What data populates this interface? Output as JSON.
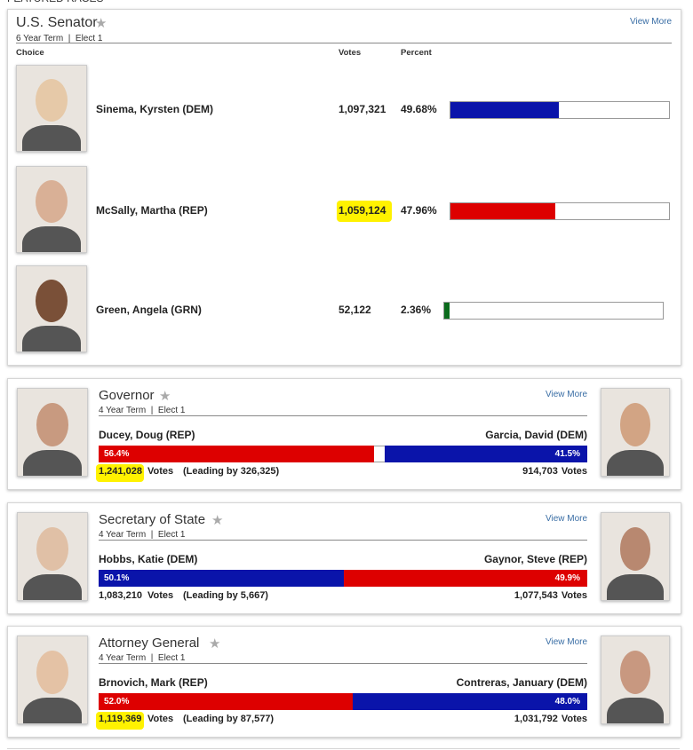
{
  "header": "FEATURED RACES",
  "senate": {
    "title": "U.S. Senator",
    "term": "6 Year Term  |  Elect 1",
    "view_more": "View More",
    "columns": [
      "Choice",
      "Votes",
      "Percent"
    ],
    "candidates": [
      {
        "name": "Sinema, Kyrsten (DEM)",
        "votes": "1,097,321",
        "percent": 49.68,
        "percent_label": "49.68%",
        "color": "#0a14aa",
        "highlight": false
      },
      {
        "name": "McSally, Martha (REP)",
        "votes": "1,059,124",
        "percent": 47.96,
        "percent_label": "47.96%",
        "color": "#dd0000",
        "highlight": true
      },
      {
        "name": "Green, Angela (GRN)",
        "votes": "52,122",
        "percent": 2.36,
        "percent_label": "2.36%",
        "color": "#0b6b1c",
        "highlight": false
      }
    ]
  },
  "races": [
    {
      "title": "Governor",
      "term": "4 Year Term  |  Elect 1",
      "view_more": "View More",
      "left": {
        "name": "Ducey, Doug (REP)",
        "votes": "1,241,028",
        "votes_unit": "Votes",
        "lead": "(Leading by 326,325)",
        "percent": 56.4,
        "percent_label": "56.4%",
        "color": "#dd0000",
        "highlight": true
      },
      "right": {
        "name": "Garcia, David (DEM)",
        "votes": "914,703",
        "votes_unit": "Votes",
        "percent": 41.5,
        "percent_label": "41.5%",
        "color": "#0a14aa"
      }
    },
    {
      "title": "Secretary of State",
      "term": "4 Year Term  |  Elect 1",
      "view_more": "View More",
      "left": {
        "name": "Hobbs, Katie (DEM)",
        "votes": "1,083,210",
        "votes_unit": "Votes",
        "lead": "(Leading by 5,667)",
        "percent": 50.1,
        "percent_label": "50.1%",
        "color": "#0a14aa",
        "highlight": false
      },
      "right": {
        "name": "Gaynor, Steve (REP)",
        "votes": "1,077,543",
        "votes_unit": "Votes",
        "percent": 49.9,
        "percent_label": "49.9%",
        "color": "#dd0000"
      }
    },
    {
      "title": "Attorney General",
      "term": "4 Year Term  |  Elect 1",
      "view_more": "View More",
      "left": {
        "name": "Brnovich, Mark (REP)",
        "votes": "1,119,369",
        "votes_unit": "Votes",
        "lead": "(Leading by 87,577)",
        "percent": 52.0,
        "percent_label": "52.0%",
        "color": "#dd0000",
        "highlight": true
      },
      "right": {
        "name": "Contreras, January (DEM)",
        "votes": "1,031,792",
        "votes_unit": "Votes",
        "percent": 48.0,
        "percent_label": "48.0%",
        "color": "#0a14aa"
      }
    }
  ]
}
